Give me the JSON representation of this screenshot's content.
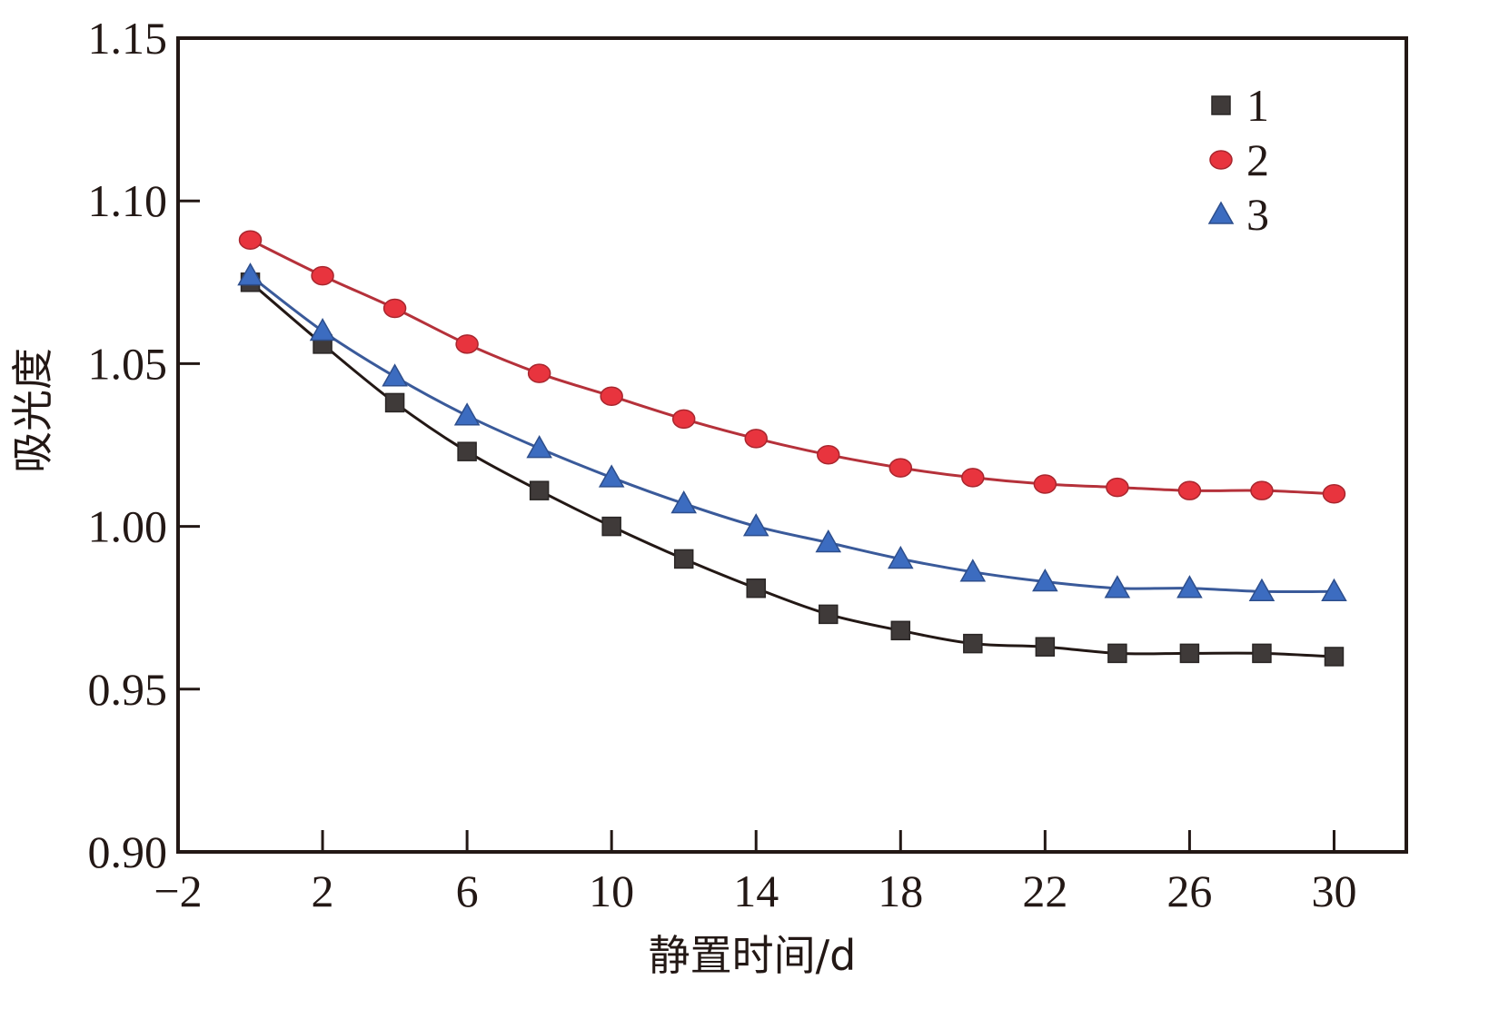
{
  "chart_data": {
    "type": "line",
    "title": "",
    "xlabel": "静置时间/d",
    "ylabel": "吸光度",
    "xlim": [
      -2,
      32
    ],
    "ylim": [
      0.9,
      1.15
    ],
    "xticks": [
      "−2",
      "2",
      "6",
      "10",
      "14",
      "18",
      "22",
      "26",
      "30"
    ],
    "xtick_values": [
      -2,
      2,
      6,
      10,
      14,
      18,
      22,
      26,
      30
    ],
    "yticks": [
      "0.90",
      "0.95",
      "1.00",
      "1.05",
      "1.10",
      "1.15"
    ],
    "ytick_values": [
      0.9,
      0.95,
      1.0,
      1.05,
      1.1,
      1.15
    ],
    "grid": false,
    "legend_position": "top-right",
    "x": [
      0,
      2,
      4,
      6,
      8,
      10,
      12,
      14,
      16,
      18,
      20,
      22,
      24,
      26,
      28,
      30
    ],
    "series": [
      {
        "name": "1",
        "marker": "square",
        "line_color": "#231815",
        "marker_color": "#3f3a39",
        "values": [
          1.075,
          1.056,
          1.038,
          1.023,
          1.011,
          1.0,
          0.99,
          0.981,
          0.973,
          0.968,
          0.964,
          0.963,
          0.961,
          0.961,
          0.961,
          0.96
        ]
      },
      {
        "name": "2",
        "marker": "circle",
        "line_color": "#b5313a",
        "marker_color": "#e8343e",
        "values": [
          1.088,
          1.077,
          1.067,
          1.056,
          1.047,
          1.04,
          1.033,
          1.027,
          1.022,
          1.018,
          1.015,
          1.013,
          1.012,
          1.011,
          1.011,
          1.01
        ]
      },
      {
        "name": "3",
        "marker": "triangle",
        "line_color": "#3a5a9a",
        "marker_color": "#3c6cc0",
        "values": [
          1.077,
          1.06,
          1.046,
          1.034,
          1.024,
          1.015,
          1.007,
          1.0,
          0.995,
          0.99,
          0.986,
          0.983,
          0.981,
          0.981,
          0.98,
          0.98
        ]
      }
    ]
  }
}
